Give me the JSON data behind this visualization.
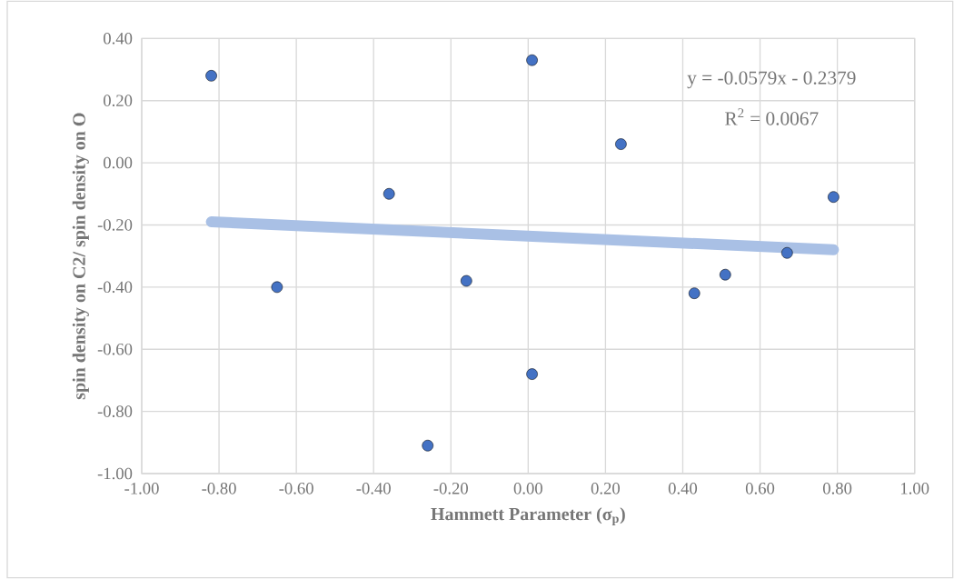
{
  "chart_data": {
    "type": "scatter",
    "xlabel": "Hammett Parameter (σ$_{p}$)",
    "ylabel": "spin density on C2/ spin density on O",
    "xlim": [
      -1.0,
      1.0
    ],
    "xticks": [
      {
        "value": -1.0,
        "label": "-1.00"
      },
      {
        "value": -0.8,
        "label": "-0.80"
      },
      {
        "value": -0.6,
        "label": "-0.60"
      },
      {
        "value": -0.4,
        "label": "-0.40"
      },
      {
        "value": -0.2,
        "label": "-0.20"
      },
      {
        "value": 0.0,
        "label": "0.00"
      },
      {
        "value": 0.2,
        "label": "0.20"
      },
      {
        "value": 0.4,
        "label": "0.40"
      },
      {
        "value": 0.6,
        "label": "0.60"
      },
      {
        "value": 0.8,
        "label": "0.80"
      },
      {
        "value": 1.0,
        "label": "1.00"
      }
    ],
    "ylim": [
      -1.0,
      0.4
    ],
    "yticks": [
      {
        "value": -1.0,
        "label": "-1.00"
      },
      {
        "value": -0.8,
        "label": "-0.80"
      },
      {
        "value": -0.6,
        "label": "-0.60"
      },
      {
        "value": -0.4,
        "label": "-0.40"
      },
      {
        "value": -0.2,
        "label": "-0.20"
      },
      {
        "value": 0.0,
        "label": "0.00"
      },
      {
        "value": 0.2,
        "label": "0.20"
      },
      {
        "value": 0.4,
        "label": "0.40"
      }
    ],
    "grid": true,
    "series": [
      {
        "marker": "circle",
        "color": "#4472c4",
        "x": [
          -0.82,
          -0.65,
          -0.36,
          -0.26,
          -0.16,
          0.01,
          0.01,
          0.24,
          0.43,
          0.51,
          0.67,
          0.79
        ],
        "values": [
          0.28,
          -0.4,
          -0.1,
          -0.91,
          -0.38,
          0.33,
          -0.68,
          0.06,
          -0.42,
          -0.36,
          -0.29,
          -0.11
        ]
      },
      {
        "type": "line",
        "marker": "none",
        "color": "#a9c0e5",
        "line_style": "solid",
        "x": [
          -0.82,
          0.79
        ],
        "values": [
          -0.19,
          -0.28
        ]
      }
    ],
    "annotations": [
      "y = -0.0579x - 0.2379",
      "R$^{2}$ = 0.0067"
    ]
  }
}
